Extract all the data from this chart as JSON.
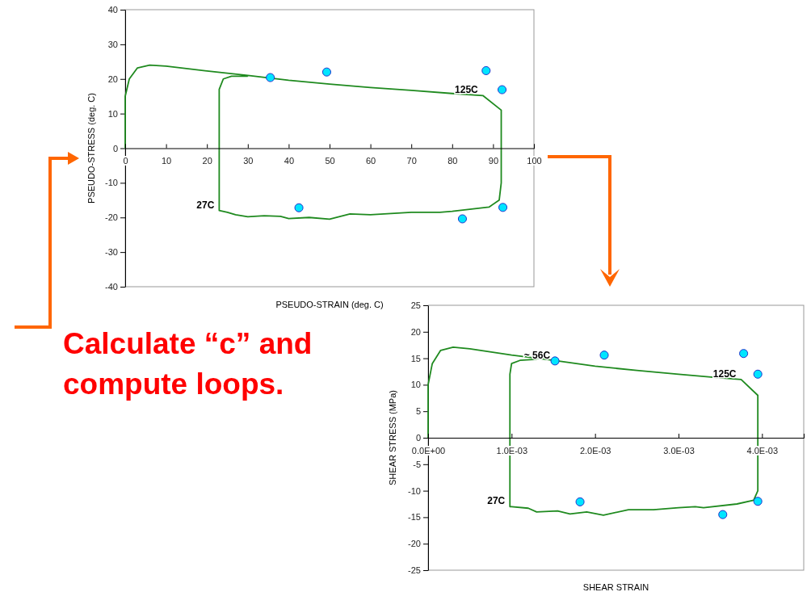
{
  "chart_data": [
    {
      "type": "line",
      "xlabel": "PSEUDO-STRAIN (deg. C)",
      "ylabel": "PSEUDO-STRESS (deg. C)",
      "xlim": [
        0,
        100
      ],
      "ylim": [
        -40,
        40
      ],
      "xticks": [
        0,
        10,
        20,
        30,
        40,
        50,
        60,
        70,
        80,
        90,
        100
      ],
      "yticks": [
        -40,
        -30,
        -20,
        -10,
        0,
        10,
        20,
        30,
        40
      ],
      "grid": false,
      "series": [
        {
          "type": "line",
          "color": "#1f8a1f",
          "x": [
            0,
            0,
            1,
            3,
            6,
            10,
            20,
            30,
            40,
            50,
            60,
            70,
            80,
            87.5,
            92,
            92,
            91.5,
            89,
            80,
            77,
            70,
            60,
            55,
            50,
            45,
            40,
            38,
            34,
            30,
            27,
            25,
            23,
            23,
            24,
            26,
            30
          ],
          "values": [
            0,
            15,
            20,
            23.2,
            24,
            23.7,
            22.3,
            21,
            19.6,
            18.5,
            17.5,
            16.7,
            15.8,
            15.2,
            11,
            -10,
            -15,
            -17,
            -18.2,
            -18.5,
            -18.5,
            -19.2,
            -19,
            -20.5,
            -20,
            -20.3,
            -19.7,
            -19.5,
            -19.8,
            -19.2,
            -18.5,
            -18,
            17,
            20,
            20.8,
            20.8
          ]
        },
        {
          "type": "scatter",
          "marker": "circle",
          "color": "#00e5ff",
          "x": [
            35.5,
            49.3,
            88.3,
            92.2,
            42.5,
            92.4,
            82.5
          ],
          "values": [
            20.4,
            22,
            22.4,
            16.9,
            -17.2,
            -17.1,
            -20.4
          ]
        }
      ],
      "annotations": [
        {
          "text": "125C",
          "x": 87.5,
          "y": 15.2
        },
        {
          "text": "27C",
          "x": 23,
          "y": -18
        }
      ]
    },
    {
      "type": "line",
      "xlabel": "SHEAR STRAIN",
      "ylabel": "SHEAR STRESS (MPa)",
      "xlim": [
        0,
        0.0045
      ],
      "ylim": [
        -25,
        25
      ],
      "xticks": [
        {
          "value": 0,
          "label": "0.0E+00"
        },
        {
          "value": 0.001,
          "label": "1.0E-03"
        },
        {
          "value": 0.002,
          "label": "2.0E-03"
        },
        {
          "value": 0.003,
          "label": "3.0E-03"
        },
        {
          "value": 0.004,
          "label": "4.0E-03"
        }
      ],
      "yticks": [
        -25,
        -20,
        -15,
        -10,
        -5,
        0,
        5,
        10,
        15,
        20,
        25
      ],
      "grid": false,
      "series": [
        {
          "type": "line",
          "color": "#1f8a1f",
          "x": [
            0,
            0,
            5e-05,
            0.00015,
            0.0003,
            0.0005,
            0.001,
            0.0015,
            0.002,
            0.0025,
            0.003,
            0.0035,
            0.00375,
            0.00395,
            0.00395,
            0.0039,
            0.0037,
            0.0033,
            0.0032,
            0.003,
            0.0027,
            0.0024,
            0.0021,
            0.0019,
            0.0017,
            0.00155,
            0.0013,
            0.0012,
            0.001,
            0.00098,
            0.00098,
            0.001,
            0.0011,
            0.0013
          ],
          "values": [
            0,
            10,
            14,
            16.5,
            17.1,
            16.8,
            15.6,
            14.6,
            13.5,
            12.7,
            12,
            11.3,
            11,
            8,
            -10,
            -11.8,
            -12.5,
            -13.2,
            -13,
            -13.2,
            -13.6,
            -13.6,
            -14.6,
            -14,
            -14.4,
            -13.8,
            -14,
            -13.3,
            -13,
            -13,
            12,
            14,
            14.6,
            14.8
          ]
        },
        {
          "type": "scatter",
          "marker": "circle",
          "color": "#00e5ff",
          "x": [
            0.00152,
            0.00211,
            0.00378,
            0.00395,
            0.00182,
            0.00395,
            0.00353
          ],
          "values": [
            14.5,
            15.6,
            15.9,
            12,
            -12.1,
            -12,
            -14.5
          ]
        }
      ],
      "annotations": [
        {
          "text": "~ 56C",
          "x": 0.00152,
          "y": 14.5
        },
        {
          "text": "125C",
          "x": 0.00375,
          "y": 11
        },
        {
          "text": "27C",
          "x": 0.00098,
          "y": -13
        }
      ]
    },
    {
      "type": "other",
      "annotations": [
        "Calculate “c” and compute loops."
      ]
    }
  ]
}
